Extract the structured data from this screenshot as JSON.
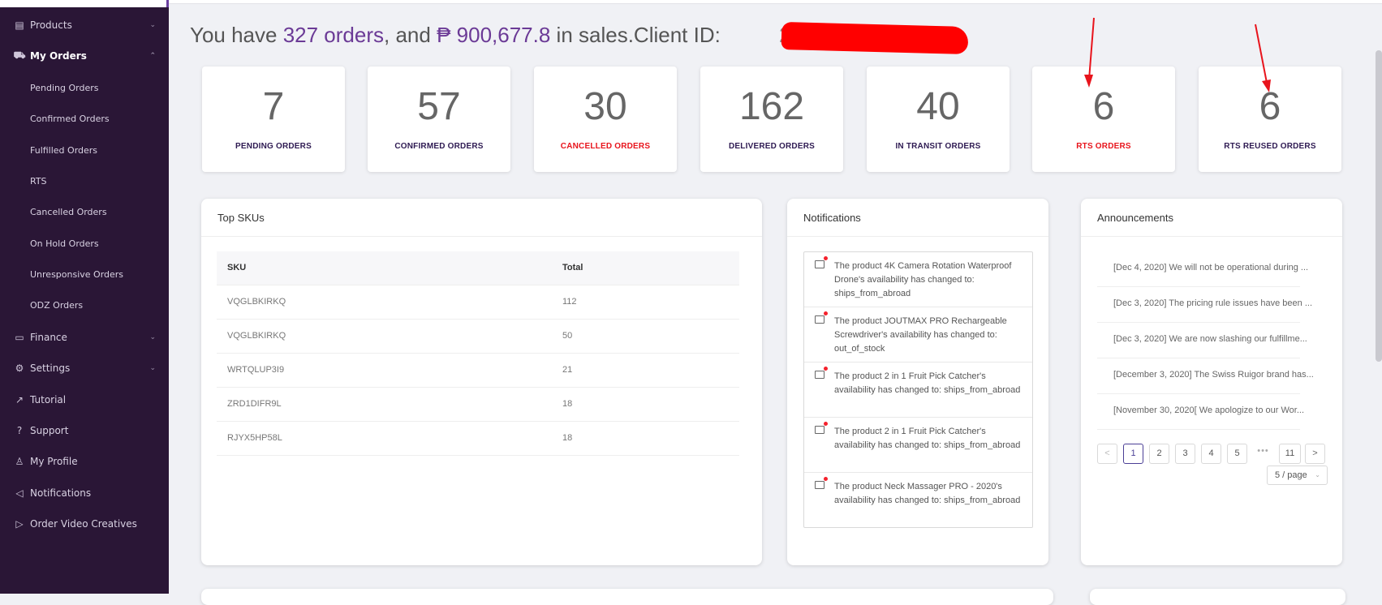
{
  "sidebar": {
    "items": [
      {
        "label": "Products",
        "icon": "box-icon",
        "chevron": "⌄"
      },
      {
        "label": "My Orders",
        "icon": "cart-icon",
        "chevron": "⌃"
      },
      {
        "label": "Finance",
        "icon": "wallet-icon",
        "chevron": "⌄"
      },
      {
        "label": "Settings",
        "icon": "gear-icon",
        "chevron": "⌄"
      },
      {
        "label": "Tutorial",
        "icon": "chart-line-icon"
      },
      {
        "label": "Support",
        "icon": "help-icon"
      },
      {
        "label": "My Profile",
        "icon": "user-icon"
      },
      {
        "label": "Notifications",
        "icon": "megaphone-icon"
      },
      {
        "label": "Order Video Creatives",
        "icon": "play-icon"
      }
    ],
    "sub_items": [
      "Pending Orders",
      "Confirmed Orders",
      "Fulfilled Orders",
      "RTS",
      "Cancelled Orders",
      "On Hold Orders",
      "Unresponsive Orders",
      "ODZ Orders"
    ]
  },
  "headline": {
    "prefix": "You have ",
    "orders": "327 orders",
    "middle": ", and ",
    "sales": "₱ 900,677.8",
    "suffix": " in sales.Client ID: ",
    "client_id_visible": "2",
    "redaction_color": "#ff0000"
  },
  "stats": [
    {
      "value": "7",
      "label": "PENDING ORDERS"
    },
    {
      "value": "57",
      "label": "CONFIRMED ORDERS"
    },
    {
      "value": "30",
      "label": "CANCELLED ORDERS"
    },
    {
      "value": "162",
      "label": "DELIVERED ORDERS"
    },
    {
      "value": "40",
      "label": "IN TRANSIT ORDERS"
    },
    {
      "value": "6",
      "label": "RTS ORDERS"
    },
    {
      "value": "6",
      "label": "RTS REUSED ORDERS"
    }
  ],
  "top_skus": {
    "title": "Top SKUs",
    "columns": [
      "SKU",
      "Total"
    ],
    "rows": [
      {
        "sku": "VQGLBKIRKQ",
        "total": "112"
      },
      {
        "sku": "VQGLBKIRKQ",
        "total": "50"
      },
      {
        "sku": "WRTQLUP3I9",
        "total": "21"
      },
      {
        "sku": "ZRD1DIFR9L",
        "total": "18"
      },
      {
        "sku": "RJYX5HP58L",
        "total": "18"
      }
    ]
  },
  "notifications": {
    "title": "Notifications",
    "items": [
      "The product 4K Camera Rotation Waterproof Drone's availability has changed to: ships_from_abroad",
      "The product JOUTMAX PRO Rechargeable Screwdriver's availability has changed to: out_of_stock",
      "The product 2 in 1 Fruit Pick Catcher's availability has changed to: ships_from_abroad",
      "The product 2 in 1 Fruit Pick Catcher's availability has changed to: ships_from_abroad",
      "The product Neck Massager PRO - 2020's availability has changed to: ships_from_abroad"
    ]
  },
  "announcements": {
    "title": "Announcements",
    "items": [
      "[Dec 4, 2020] We will not be operational during ...",
      "[Dec 3, 2020] The pricing rule issues have been ...",
      "[Dec 3, 2020] We are now slashing our fulfillme...",
      "[December 3, 2020] The Swiss Ruigor brand has...",
      "[November 30, 2020[ We apologize to our Wor..."
    ],
    "pagination": {
      "prev": "<",
      "pages": [
        "1",
        "2",
        "3",
        "4",
        "5"
      ],
      "ellipsis": "•••",
      "last": "11",
      "next": ">",
      "current": "1",
      "page_size": "5 / page"
    }
  },
  "colors": {
    "sidebar_bg": "#2a1636",
    "accent_purple": "#6b3a96",
    "alert_red": "#e8141c"
  }
}
